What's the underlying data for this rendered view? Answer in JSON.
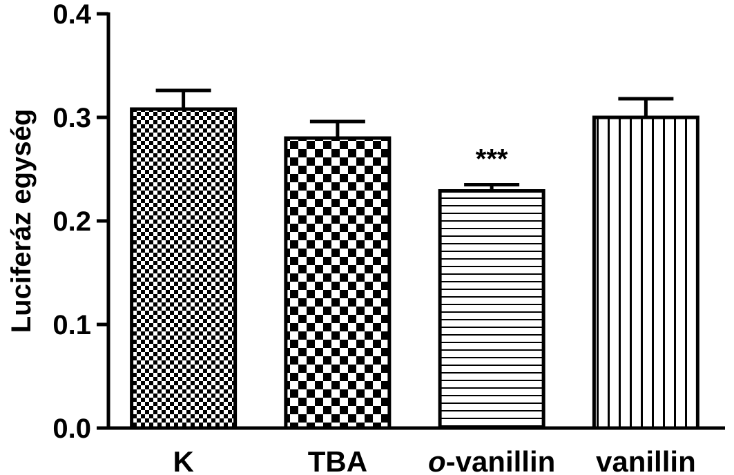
{
  "chart_data": {
    "type": "bar",
    "ylabel": "Luciferáz egység",
    "ylim": [
      0,
      0.4
    ],
    "yticks": [
      "0.0",
      "0.1",
      "0.2",
      "0.3",
      "0.4"
    ],
    "categories": [
      {
        "prefix": "",
        "name": "K"
      },
      {
        "prefix": "",
        "name": "TBA"
      },
      {
        "prefix": "o",
        "name": "-vanillin"
      },
      {
        "prefix": "",
        "name": "vanillin"
      }
    ],
    "values": [
      0.308,
      0.28,
      0.229,
      0.3
    ],
    "errors": [
      0.018,
      0.016,
      0.006,
      0.018
    ],
    "patterns": [
      "fine-checker",
      "coarse-checker",
      "horizontal-lines",
      "vertical-lines"
    ],
    "annotations": [
      "",
      "",
      "***",
      ""
    ],
    "grid": false,
    "legend": "none"
  }
}
